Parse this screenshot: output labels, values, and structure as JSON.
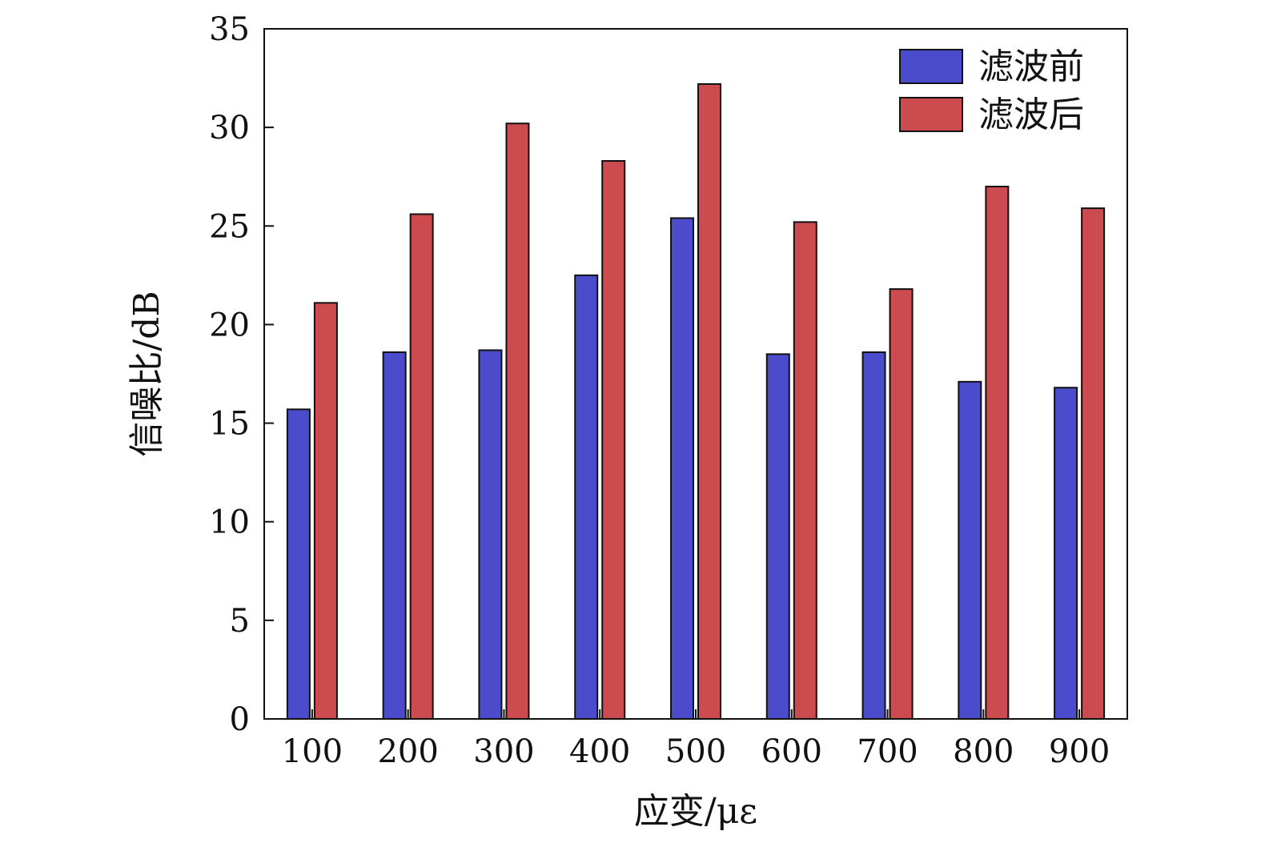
{
  "chart_data": {
    "type": "bar",
    "categories": [
      "100",
      "200",
      "300",
      "400",
      "500",
      "600",
      "700",
      "800",
      "900"
    ],
    "series": [
      {
        "name": "滤波前",
        "values": [
          15.7,
          18.6,
          18.7,
          22.5,
          25.4,
          18.5,
          18.6,
          17.1,
          16.8
        ],
        "color": "#4b4ccc"
      },
      {
        "name": "滤波后",
        "values": [
          21.1,
          25.6,
          30.2,
          28.3,
          32.2,
          25.2,
          21.8,
          27.0,
          25.9
        ],
        "color": "#cc4b4e"
      }
    ],
    "xlabel": "应变/με",
    "ylabel": "信噪比/dB",
    "ylim": [
      0,
      35
    ],
    "yticks": [
      "0",
      "5",
      "10",
      "15",
      "20",
      "25",
      "30",
      "35"
    ],
    "legend_position": "top-right",
    "grid": false
  }
}
